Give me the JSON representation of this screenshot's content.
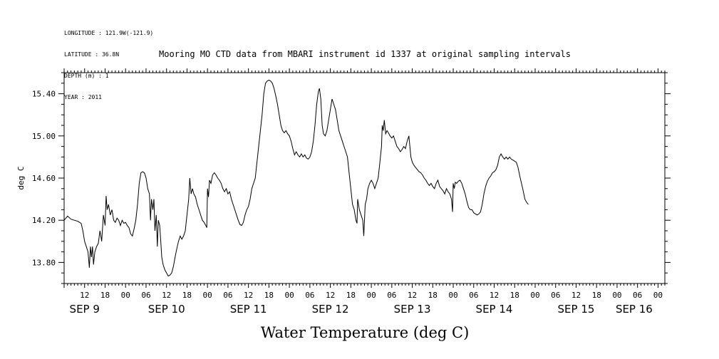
{
  "meta": {
    "longitude": "LONGITUDE : 121.9W(-121.9)",
    "latitude": "LATITUDE : 36.8N",
    "depth": "DEPTH (m) : 1",
    "year": "YEAR : 2011"
  },
  "chart_data": {
    "type": "line",
    "title": "Mooring MO CTD data from MBARI instrument id 1337 at original sampling intervals",
    "xlabel": "Water Temperature (deg C)",
    "ylabel": "deg C",
    "x_units": "hours since Sep 9 00:00, 2011",
    "xlim": [
      6,
      182
    ],
    "ylim": [
      13.6,
      15.6
    ],
    "yticks": [
      13.8,
      14.2,
      14.6,
      15.0,
      15.4
    ],
    "ytick_labels": [
      "13.80",
      "14.20",
      "14.60",
      "15.00",
      "15.40"
    ],
    "xtick_hours": [
      12,
      18,
      24,
      30,
      36,
      42,
      48,
      54,
      60,
      66,
      72,
      78,
      84,
      90,
      96,
      102,
      108,
      114,
      120,
      126,
      132,
      138,
      144,
      150,
      156,
      162,
      168,
      174,
      180
    ],
    "xtick_labels": [
      "12",
      "18",
      "00",
      "06",
      "12",
      "18",
      "00",
      "06",
      "12",
      "18",
      "00",
      "06",
      "12",
      "18",
      "00",
      "06",
      "12",
      "18",
      "00",
      "06",
      "12",
      "18",
      "00",
      "06",
      "12",
      "18",
      "00",
      "06",
      "00"
    ],
    "day_labels": [
      {
        "hour": 12,
        "label": "SEP  9"
      },
      {
        "hour": 36,
        "label": "SEP 10"
      },
      {
        "hour": 60,
        "label": "SEP 11"
      },
      {
        "hour": 84,
        "label": "SEP 12"
      },
      {
        "hour": 108,
        "label": "SEP 13"
      },
      {
        "hour": 132,
        "label": "SEP 14"
      },
      {
        "hour": 156,
        "label": "SEP 15"
      },
      {
        "hour": 173,
        "label": "SEP 16"
      }
    ],
    "series": [
      {
        "values": [
          [
            6,
            14.2
          ],
          [
            7,
            14.24
          ],
          [
            8,
            14.21
          ],
          [
            9,
            14.2
          ],
          [
            10,
            14.19
          ],
          [
            11,
            14.17
          ],
          [
            11.5,
            14.1
          ],
          [
            12,
            14.0
          ],
          [
            12.5,
            13.95
          ],
          [
            13,
            13.9
          ],
          [
            13.4,
            13.75
          ],
          [
            13.7,
            13.95
          ],
          [
            14,
            13.85
          ],
          [
            14.3,
            13.95
          ],
          [
            14.6,
            13.78
          ],
          [
            15,
            13.9
          ],
          [
            15.5,
            13.95
          ],
          [
            16,
            13.98
          ],
          [
            16.5,
            14.1
          ],
          [
            17,
            14.0
          ],
          [
            17.5,
            14.25
          ],
          [
            18,
            14.15
          ],
          [
            18.3,
            14.43
          ],
          [
            18.6,
            14.3
          ],
          [
            19,
            14.35
          ],
          [
            19.5,
            14.25
          ],
          [
            20,
            14.3
          ],
          [
            20.5,
            14.2
          ],
          [
            21,
            14.18
          ],
          [
            21.5,
            14.22
          ],
          [
            22,
            14.2
          ],
          [
            22.5,
            14.15
          ],
          [
            23,
            14.2
          ],
          [
            23.5,
            14.17
          ],
          [
            24,
            14.18
          ],
          [
            24.5,
            14.15
          ],
          [
            25,
            14.13
          ],
          [
            25.5,
            14.07
          ],
          [
            26,
            14.05
          ],
          [
            26.5,
            14.12
          ],
          [
            27,
            14.2
          ],
          [
            27.5,
            14.35
          ],
          [
            28,
            14.55
          ],
          [
            28.5,
            14.65
          ],
          [
            29,
            14.66
          ],
          [
            29.5,
            14.65
          ],
          [
            30,
            14.6
          ],
          [
            30.5,
            14.5
          ],
          [
            31,
            14.45
          ],
          [
            31.3,
            14.2
          ],
          [
            31.6,
            14.4
          ],
          [
            32,
            14.3
          ],
          [
            32.3,
            14.4
          ],
          [
            32.6,
            14.1
          ],
          [
            33,
            14.25
          ],
          [
            33.3,
            13.95
          ],
          [
            33.6,
            14.2
          ],
          [
            34,
            14.15
          ],
          [
            34.3,
            14.0
          ],
          [
            34.6,
            13.85
          ],
          [
            35,
            13.78
          ],
          [
            35.5,
            13.73
          ],
          [
            36,
            13.7
          ],
          [
            36.5,
            13.67
          ],
          [
            37,
            13.68
          ],
          [
            37.5,
            13.7
          ],
          [
            38,
            13.76
          ],
          [
            38.5,
            13.85
          ],
          [
            39,
            13.93
          ],
          [
            39.5,
            14.0
          ],
          [
            40,
            14.05
          ],
          [
            40.5,
            14.02
          ],
          [
            41,
            14.05
          ],
          [
            41.5,
            14.1
          ],
          [
            42,
            14.25
          ],
          [
            42.5,
            14.4
          ],
          [
            42.8,
            14.6
          ],
          [
            43.2,
            14.45
          ],
          [
            43.6,
            14.5
          ],
          [
            44,
            14.45
          ],
          [
            44.5,
            14.42
          ],
          [
            45,
            14.35
          ],
          [
            45.5,
            14.3
          ],
          [
            46,
            14.25
          ],
          [
            46.5,
            14.2
          ],
          [
            47,
            14.18
          ],
          [
            47.5,
            14.15
          ],
          [
            47.8,
            14.13
          ],
          [
            48,
            14.5
          ],
          [
            48.3,
            14.42
          ],
          [
            48.6,
            14.58
          ],
          [
            49,
            14.55
          ],
          [
            49.5,
            14.63
          ],
          [
            50,
            14.65
          ],
          [
            50.5,
            14.63
          ],
          [
            51,
            14.6
          ],
          [
            51.5,
            14.58
          ],
          [
            52,
            14.55
          ],
          [
            52.5,
            14.5
          ],
          [
            53,
            14.47
          ],
          [
            53.5,
            14.5
          ],
          [
            54,
            14.45
          ],
          [
            54.5,
            14.47
          ],
          [
            55,
            14.4
          ],
          [
            55.5,
            14.35
          ],
          [
            56,
            14.3
          ],
          [
            56.5,
            14.25
          ],
          [
            57,
            14.2
          ],
          [
            57.5,
            14.16
          ],
          [
            58,
            14.15
          ],
          [
            58.5,
            14.18
          ],
          [
            59,
            14.25
          ],
          [
            59.5,
            14.3
          ],
          [
            60,
            14.33
          ],
          [
            60.5,
            14.4
          ],
          [
            61,
            14.5
          ],
          [
            61.5,
            14.55
          ],
          [
            62,
            14.6
          ],
          [
            62.5,
            14.75
          ],
          [
            63,
            14.9
          ],
          [
            63.5,
            15.05
          ],
          [
            64,
            15.2
          ],
          [
            64.5,
            15.4
          ],
          [
            65,
            15.5
          ],
          [
            65.5,
            15.52
          ],
          [
            66,
            15.53
          ],
          [
            66.5,
            15.52
          ],
          [
            67,
            15.5
          ],
          [
            67.5,
            15.45
          ],
          [
            68,
            15.38
          ],
          [
            68.5,
            15.3
          ],
          [
            69,
            15.2
          ],
          [
            69.5,
            15.1
          ],
          [
            70,
            15.05
          ],
          [
            70.5,
            15.03
          ],
          [
            71,
            15.05
          ],
          [
            71.5,
            15.02
          ],
          [
            72,
            15.0
          ],
          [
            72.5,
            14.95
          ],
          [
            73,
            14.88
          ],
          [
            73.5,
            14.82
          ],
          [
            74,
            14.85
          ],
          [
            74.5,
            14.82
          ],
          [
            75,
            14.8
          ],
          [
            75.5,
            14.83
          ],
          [
            76,
            14.8
          ],
          [
            76.5,
            14.82
          ],
          [
            77,
            14.79
          ],
          [
            77.5,
            14.78
          ],
          [
            78,
            14.8
          ],
          [
            78.5,
            14.85
          ],
          [
            79,
            14.95
          ],
          [
            79.5,
            15.1
          ],
          [
            80,
            15.3
          ],
          [
            80.5,
            15.42
          ],
          [
            80.8,
            15.45
          ],
          [
            81.2,
            15.35
          ],
          [
            81.6,
            15.1
          ],
          [
            82,
            15.02
          ],
          [
            82.5,
            15.0
          ],
          [
            83,
            15.05
          ],
          [
            83.5,
            15.15
          ],
          [
            84,
            15.25
          ],
          [
            84.5,
            15.35
          ],
          [
            85,
            15.3
          ],
          [
            85.5,
            15.25
          ],
          [
            86,
            15.15
          ],
          [
            86.5,
            15.05
          ],
          [
            87,
            15.0
          ],
          [
            87.5,
            14.95
          ],
          [
            88,
            14.9
          ],
          [
            88.5,
            14.85
          ],
          [
            89,
            14.8
          ],
          [
            89.5,
            14.65
          ],
          [
            90,
            14.5
          ],
          [
            90.5,
            14.35
          ],
          [
            91,
            14.3
          ],
          [
            91.5,
            14.2
          ],
          [
            91.8,
            14.17
          ],
          [
            92,
            14.4
          ],
          [
            92.5,
            14.3
          ],
          [
            93,
            14.25
          ],
          [
            93.5,
            14.2
          ],
          [
            93.8,
            14.05
          ],
          [
            94.2,
            14.35
          ],
          [
            94.6,
            14.4
          ],
          [
            95,
            14.5
          ],
          [
            95.5,
            14.55
          ],
          [
            96,
            14.58
          ],
          [
            96.5,
            14.55
          ],
          [
            97,
            14.5
          ],
          [
            97.5,
            14.55
          ],
          [
            98,
            14.6
          ],
          [
            98.5,
            14.75
          ],
          [
            99,
            14.9
          ],
          [
            99.2,
            15.1
          ],
          [
            99.5,
            15.05
          ],
          [
            99.8,
            15.15
          ],
          [
            100.2,
            15.02
          ],
          [
            100.6,
            15.05
          ],
          [
            101,
            15.03
          ],
          [
            101.5,
            15.0
          ],
          [
            102,
            14.98
          ],
          [
            102.5,
            15.0
          ],
          [
            103,
            14.95
          ],
          [
            103.5,
            14.9
          ],
          [
            104,
            14.88
          ],
          [
            104.5,
            14.85
          ],
          [
            105,
            14.87
          ],
          [
            105.5,
            14.9
          ],
          [
            106,
            14.88
          ],
          [
            106.5,
            14.95
          ],
          [
            107,
            15.0
          ],
          [
            107.3,
            14.9
          ],
          [
            107.6,
            14.8
          ],
          [
            108,
            14.75
          ],
          [
            108.5,
            14.72
          ],
          [
            109,
            14.7
          ],
          [
            109.5,
            14.68
          ],
          [
            110,
            14.66
          ],
          [
            110.5,
            14.65
          ],
          [
            111,
            14.63
          ],
          [
            111.5,
            14.6
          ],
          [
            112,
            14.58
          ],
          [
            112.5,
            14.55
          ],
          [
            113,
            14.53
          ],
          [
            113.5,
            14.55
          ],
          [
            114,
            14.52
          ],
          [
            114.5,
            14.5
          ],
          [
            115,
            14.55
          ],
          [
            115.5,
            14.58
          ],
          [
            116,
            14.52
          ],
          [
            116.5,
            14.5
          ],
          [
            117,
            14.48
          ],
          [
            117.5,
            14.45
          ],
          [
            118,
            14.5
          ],
          [
            118.5,
            14.47
          ],
          [
            119,
            14.45
          ],
          [
            119.5,
            14.4
          ],
          [
            119.8,
            14.28
          ],
          [
            120,
            14.55
          ],
          [
            120.3,
            14.5
          ],
          [
            120.6,
            14.56
          ],
          [
            121,
            14.55
          ],
          [
            121.5,
            14.57
          ],
          [
            122,
            14.58
          ],
          [
            122.5,
            14.55
          ],
          [
            123,
            14.5
          ],
          [
            123.5,
            14.45
          ],
          [
            124,
            14.38
          ],
          [
            124.5,
            14.32
          ],
          [
            125,
            14.3
          ],
          [
            125.5,
            14.3
          ],
          [
            126,
            14.27
          ],
          [
            126.5,
            14.26
          ],
          [
            127,
            14.25
          ],
          [
            127.5,
            14.26
          ],
          [
            128,
            14.28
          ],
          [
            128.5,
            14.35
          ],
          [
            129,
            14.45
          ],
          [
            129.5,
            14.52
          ],
          [
            130,
            14.57
          ],
          [
            130.5,
            14.6
          ],
          [
            131,
            14.62
          ],
          [
            131.5,
            14.65
          ],
          [
            132,
            14.66
          ],
          [
            132.5,
            14.68
          ],
          [
            133,
            14.72
          ],
          [
            133.5,
            14.8
          ],
          [
            134,
            14.83
          ],
          [
            134.5,
            14.8
          ],
          [
            135,
            14.78
          ],
          [
            135.5,
            14.8
          ],
          [
            136,
            14.78
          ],
          [
            136.5,
            14.8
          ],
          [
            137,
            14.78
          ],
          [
            137.5,
            14.77
          ],
          [
            138,
            14.76
          ],
          [
            138.5,
            14.75
          ],
          [
            139,
            14.7
          ],
          [
            139.5,
            14.62
          ],
          [
            140,
            14.55
          ],
          [
            140.5,
            14.48
          ],
          [
            141,
            14.4
          ],
          [
            141.5,
            14.37
          ],
          [
            142,
            14.35
          ]
        ]
      }
    ]
  }
}
